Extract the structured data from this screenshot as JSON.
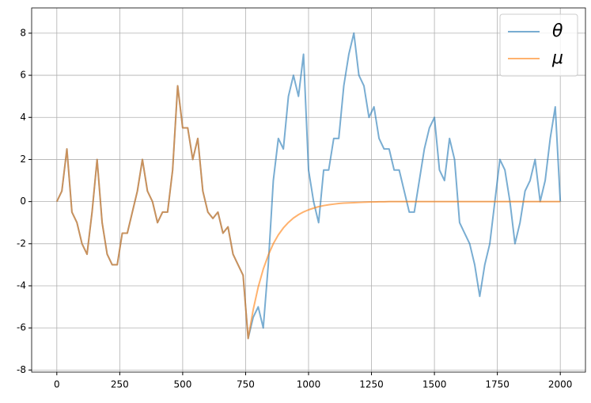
{
  "chart_data": {
    "type": "line",
    "x": [
      0,
      20,
      40,
      60,
      80,
      100,
      120,
      140,
      160,
      180,
      200,
      220,
      240,
      260,
      280,
      300,
      320,
      340,
      360,
      380,
      400,
      420,
      440,
      460,
      480,
      500,
      520,
      540,
      560,
      580,
      600,
      620,
      640,
      660,
      680,
      700,
      720,
      740,
      760,
      780,
      800,
      820,
      840,
      860,
      880,
      900,
      920,
      940,
      960,
      980,
      1000,
      1020,
      1040,
      1060,
      1080,
      1100,
      1120,
      1140,
      1160,
      1180,
      1200,
      1220,
      1240,
      1260,
      1280,
      1300,
      1320,
      1340,
      1360,
      1380,
      1400,
      1420,
      1440,
      1460,
      1480,
      1500,
      1520,
      1540,
      1560,
      1580,
      1600,
      1620,
      1640,
      1660,
      1680,
      1700,
      1720,
      1740,
      1760,
      1780,
      1800,
      1820,
      1840,
      1860,
      1880,
      1900,
      1920,
      1940,
      1960,
      1980,
      2000
    ],
    "series": [
      {
        "name": "θ",
        "color": "#1f77b4",
        "values": [
          0,
          0.5,
          2.5,
          -0.5,
          -1,
          -2,
          -2.5,
          -0.5,
          2,
          -1,
          -2.5,
          -3,
          -3,
          -1.5,
          -1.5,
          -0.5,
          0.5,
          2,
          0.5,
          0,
          -1,
          -0.5,
          -0.5,
          1.5,
          5.5,
          3.5,
          3.5,
          2,
          3,
          0.5,
          -0.5,
          -0.8,
          -0.5,
          -1.5,
          -1.2,
          -2.5,
          -3,
          -3.5,
          -6.5,
          -5.5,
          -5,
          -6,
          -3,
          1,
          3,
          2.5,
          5,
          6,
          5,
          7,
          1.5,
          0,
          -1,
          1.5,
          1.5,
          3,
          3,
          5.5,
          7,
          8,
          6,
          5.5,
          4,
          4.5,
          3,
          2.5,
          2.5,
          1.5,
          1.5,
          0.5,
          -0.5,
          -0.5,
          1,
          2.5,
          3.5,
          4,
          1.5,
          1,
          3,
          2,
          -1,
          -1.5,
          -2,
          -3,
          -4.5,
          -3,
          -2,
          0,
          2,
          1.5,
          0,
          -2,
          -1,
          0.5,
          1,
          2,
          0,
          1,
          3,
          4.5,
          0
        ]
      },
      {
        "name": "μ",
        "color": "#ff7f0e",
        "values": [
          0,
          0.5,
          2.5,
          -0.5,
          -1,
          -2,
          -2.5,
          -0.5,
          2,
          -1,
          -2.5,
          -3,
          -3,
          -1.5,
          -1.5,
          -0.5,
          0.5,
          2,
          0.5,
          0,
          -1,
          -0.5,
          -0.5,
          1.5,
          5.5,
          3.5,
          3.5,
          2,
          3,
          0.5,
          -0.5,
          -0.8,
          -0.5,
          -1.5,
          -1.2,
          -2.5,
          -3,
          -3.5,
          -6.5,
          -5.14,
          -4.06,
          -3.21,
          -2.54,
          -2.0,
          -1.58,
          -1.25,
          -0.99,
          -0.78,
          -0.62,
          -0.49,
          -0.39,
          -0.31,
          -0.24,
          -0.19,
          -0.15,
          -0.12,
          -0.09,
          -0.07,
          -0.06,
          -0.05,
          -0.04,
          -0.03,
          -0.02,
          -0.02,
          -0.01,
          -0.01,
          0,
          0,
          0,
          0,
          0,
          0,
          0,
          0,
          0,
          0,
          0,
          0,
          0,
          0,
          0,
          0,
          0,
          0,
          0,
          0,
          0,
          0,
          0,
          0,
          0,
          0,
          0,
          0,
          0,
          0,
          0,
          0,
          0,
          0,
          0
        ]
      }
    ],
    "xlim": [
      -100,
      2100
    ],
    "ylim": [
      -8.1,
      9.2
    ],
    "xticks": [
      0,
      250,
      500,
      750,
      1000,
      1250,
      1500,
      1750,
      2000
    ],
    "yticks": [
      -8,
      -6,
      -4,
      -2,
      0,
      2,
      4,
      6,
      8
    ],
    "grid": true,
    "legend": "upper right"
  }
}
